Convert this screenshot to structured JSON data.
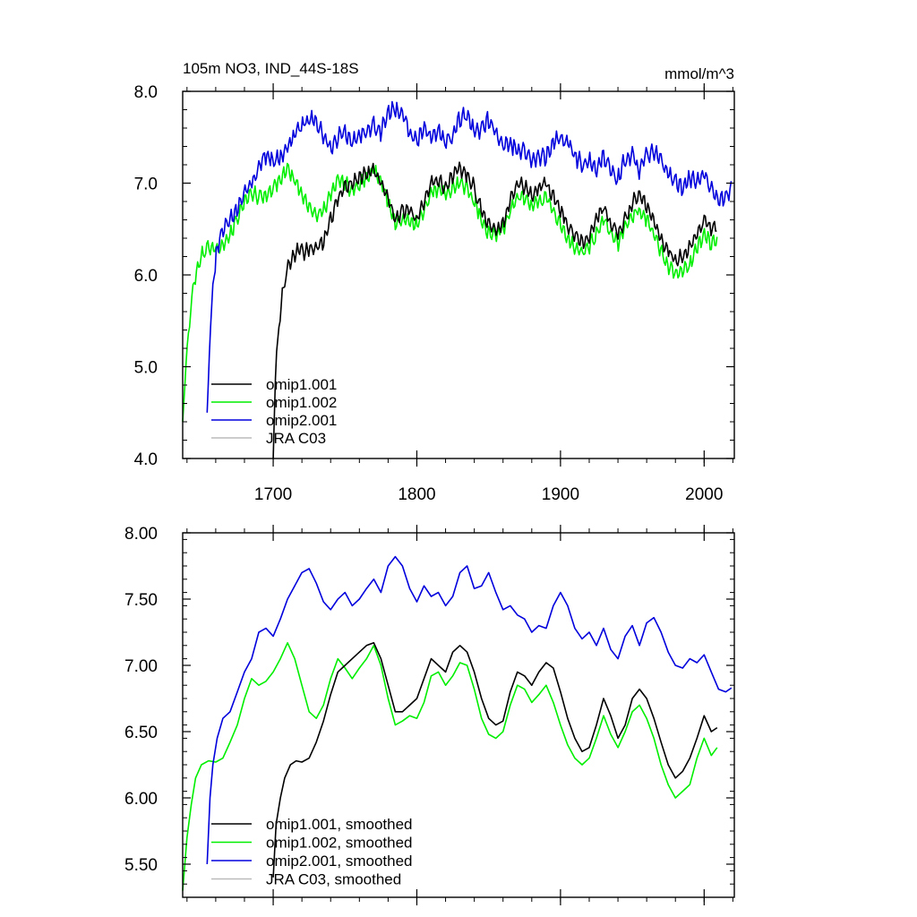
{
  "chart_data": [
    {
      "type": "line",
      "title": "105m NO3, IND_44S-18S",
      "units": "mmol/m^3",
      "xlim": [
        1637,
        2021
      ],
      "ylim": [
        4.0,
        8.0
      ],
      "xticks": [
        1700,
        1800,
        1900,
        2000
      ],
      "xtick_labels": [
        "1700",
        "1800",
        "1900",
        "2000"
      ],
      "yticks": [
        4.0,
        5.0,
        6.0,
        7.0,
        8.0
      ],
      "ytick_labels": [
        "4.0",
        "5.0",
        "6.0",
        "7.0",
        "8.0"
      ],
      "legend_position": "bottom-left",
      "series": [
        {
          "name": "omip1.001",
          "color": "#000000",
          "x0": 1700,
          "noise": 0.07,
          "x": [
            1700,
            1702,
            1705,
            1708,
            1712,
            1718,
            1722,
            1728,
            1735,
            1740,
            1745,
            1750,
            1755,
            1760,
            1765,
            1770,
            1775,
            1780,
            1785,
            1790,
            1795,
            1800,
            1805,
            1810,
            1815,
            1820,
            1825,
            1830,
            1835,
            1840,
            1845,
            1850,
            1855,
            1860,
            1865,
            1870,
            1875,
            1880,
            1885,
            1890,
            1895,
            1900,
            1905,
            1910,
            1915,
            1920,
            1925,
            1930,
            1935,
            1940,
            1945,
            1950,
            1955,
            1960,
            1965,
            1970,
            1975,
            1980,
            1985,
            1990,
            1995,
            2000,
            2005,
            2009
          ],
          "y": [
            4.0,
            5.1,
            5.6,
            5.95,
            6.15,
            6.3,
            6.25,
            6.28,
            6.35,
            6.6,
            6.85,
            6.95,
            7.0,
            7.05,
            7.1,
            7.15,
            7.0,
            6.85,
            6.6,
            6.7,
            6.7,
            6.6,
            6.8,
            7.0,
            7.05,
            6.95,
            7.1,
            7.15,
            7.1,
            6.95,
            6.7,
            6.55,
            6.5,
            6.55,
            6.8,
            7.0,
            6.95,
            6.85,
            6.95,
            7.0,
            6.85,
            6.7,
            6.55,
            6.45,
            6.35,
            6.4,
            6.6,
            6.75,
            6.55,
            6.45,
            6.6,
            6.8,
            6.85,
            6.75,
            6.6,
            6.4,
            6.25,
            6.15,
            6.2,
            6.3,
            6.45,
            6.6,
            6.5,
            6.55
          ]
        },
        {
          "name": "omip1.002",
          "color": "#00ee00",
          "x0": 1637,
          "noise": 0.07,
          "x": [
            1637,
            1640,
            1643,
            1646,
            1650,
            1655,
            1660,
            1665,
            1670,
            1675,
            1680,
            1685,
            1690,
            1695,
            1700,
            1705,
            1710,
            1715,
            1720,
            1725,
            1730,
            1735,
            1740,
            1745,
            1750,
            1755,
            1760,
            1765,
            1770,
            1775,
            1780,
            1785,
            1790,
            1795,
            1800,
            1805,
            1810,
            1815,
            1820,
            1825,
            1830,
            1835,
            1840,
            1845,
            1850,
            1855,
            1860,
            1865,
            1870,
            1875,
            1880,
            1885,
            1890,
            1895,
            1900,
            1905,
            1910,
            1915,
            1920,
            1925,
            1930,
            1935,
            1940,
            1945,
            1950,
            1955,
            1960,
            1965,
            1970,
            1975,
            1980,
            1985,
            1990,
            1995,
            2000,
            2005,
            2009
          ],
          "y": [
            4.4,
            5.2,
            5.7,
            6.0,
            6.2,
            6.3,
            6.3,
            6.3,
            6.45,
            6.6,
            6.8,
            6.9,
            6.85,
            6.85,
            6.95,
            7.05,
            7.15,
            7.05,
            6.85,
            6.75,
            6.65,
            6.7,
            6.9,
            7.05,
            7.0,
            6.9,
            7.0,
            7.05,
            7.15,
            7.0,
            6.8,
            6.55,
            6.6,
            6.6,
            6.55,
            6.7,
            6.9,
            6.95,
            6.85,
            6.95,
            7.0,
            6.95,
            6.8,
            6.6,
            6.45,
            6.45,
            6.5,
            6.7,
            6.85,
            6.85,
            6.75,
            6.8,
            6.85,
            6.7,
            6.55,
            6.4,
            6.3,
            6.25,
            6.3,
            6.45,
            6.6,
            6.45,
            6.35,
            6.5,
            6.65,
            6.7,
            6.6,
            6.45,
            6.25,
            6.1,
            6.0,
            6.05,
            6.1,
            6.3,
            6.45,
            6.35,
            6.4
          ]
        },
        {
          "name": "omip2.001",
          "color": "#0000dd",
          "x0": 1654,
          "noise": 0.08,
          "x": [
            1654,
            1656,
            1658,
            1661,
            1665,
            1670,
            1675,
            1680,
            1685,
            1690,
            1695,
            1700,
            1705,
            1710,
            1715,
            1720,
            1725,
            1730,
            1735,
            1740,
            1745,
            1750,
            1755,
            1760,
            1765,
            1770,
            1775,
            1780,
            1785,
            1790,
            1795,
            1800,
            1805,
            1810,
            1815,
            1820,
            1825,
            1830,
            1835,
            1840,
            1845,
            1850,
            1855,
            1860,
            1865,
            1870,
            1875,
            1880,
            1885,
            1890,
            1895,
            1900,
            1905,
            1910,
            1915,
            1920,
            1925,
            1930,
            1935,
            1940,
            1945,
            1950,
            1955,
            1960,
            1965,
            1970,
            1975,
            1980,
            1985,
            1990,
            1995,
            2000,
            2005,
            2010,
            2015,
            2019
          ],
          "y": [
            4.5,
            5.3,
            5.9,
            6.3,
            6.5,
            6.6,
            6.7,
            6.9,
            7.0,
            7.2,
            7.3,
            7.25,
            7.3,
            7.4,
            7.55,
            7.65,
            7.7,
            7.65,
            7.5,
            7.4,
            7.5,
            7.55,
            7.45,
            7.5,
            7.55,
            7.65,
            7.55,
            7.75,
            7.8,
            7.75,
            7.55,
            7.45,
            7.6,
            7.5,
            7.55,
            7.45,
            7.5,
            7.7,
            7.75,
            7.55,
            7.6,
            7.7,
            7.55,
            7.4,
            7.45,
            7.35,
            7.35,
            7.25,
            7.3,
            7.3,
            7.45,
            7.5,
            7.45,
            7.3,
            7.2,
            7.25,
            7.15,
            7.3,
            7.15,
            7.05,
            7.25,
            7.3,
            7.15,
            7.3,
            7.35,
            7.25,
            7.1,
            7.0,
            6.95,
            7.05,
            7.0,
            7.1,
            6.95,
            6.8,
            6.85,
            6.95
          ]
        },
        {
          "name": "JRA C03",
          "color": "#bbbbbb",
          "x": [],
          "y": []
        }
      ]
    },
    {
      "type": "line",
      "xlim": [
        1637,
        2021
      ],
      "ylim": [
        5.25,
        8.0
      ],
      "xticks": [
        1700,
        1800,
        1900,
        2000
      ],
      "yticks": [
        5.5,
        6.0,
        6.5,
        7.0,
        7.5,
        8.0
      ],
      "ytick_labels": [
        "5.50",
        "6.00",
        "6.50",
        "7.00",
        "7.50",
        "8.00"
      ],
      "legend_position": "bottom-left",
      "series": [
        {
          "name": "omip1.001, smoothed",
          "color": "#000000",
          "x0": 1700,
          "x": [
            1700,
            1702,
            1705,
            1708,
            1712,
            1716,
            1720,
            1725,
            1730,
            1735,
            1740,
            1745,
            1750,
            1755,
            1760,
            1765,
            1770,
            1775,
            1780,
            1785,
            1790,
            1795,
            1800,
            1805,
            1810,
            1815,
            1820,
            1825,
            1830,
            1835,
            1840,
            1845,
            1850,
            1855,
            1860,
            1865,
            1870,
            1875,
            1880,
            1885,
            1890,
            1895,
            1900,
            1905,
            1910,
            1915,
            1920,
            1925,
            1930,
            1935,
            1940,
            1945,
            1950,
            1955,
            1960,
            1965,
            1970,
            1975,
            1980,
            1985,
            1990,
            1995,
            2000,
            2005,
            2009
          ],
          "y": [
            5.4,
            5.8,
            6.0,
            6.15,
            6.25,
            6.28,
            6.27,
            6.3,
            6.42,
            6.58,
            6.78,
            6.95,
            7.0,
            7.05,
            7.1,
            7.15,
            7.17,
            7.05,
            6.85,
            6.65,
            6.65,
            6.7,
            6.75,
            6.9,
            7.05,
            7.0,
            6.95,
            7.1,
            7.15,
            7.1,
            6.95,
            6.75,
            6.6,
            6.55,
            6.58,
            6.8,
            6.95,
            6.92,
            6.85,
            6.95,
            7.02,
            6.98,
            6.8,
            6.6,
            6.45,
            6.35,
            6.38,
            6.55,
            6.75,
            6.62,
            6.45,
            6.55,
            6.75,
            6.82,
            6.75,
            6.6,
            6.42,
            6.25,
            6.15,
            6.2,
            6.3,
            6.45,
            6.62,
            6.5,
            6.53
          ]
        },
        {
          "name": "omip1.002, smoothed",
          "color": "#00ee00",
          "x0": 1637,
          "x": [
            1637,
            1640,
            1643,
            1646,
            1650,
            1655,
            1660,
            1665,
            1670,
            1675,
            1680,
            1685,
            1690,
            1695,
            1700,
            1705,
            1710,
            1715,
            1720,
            1725,
            1730,
            1735,
            1740,
            1745,
            1750,
            1755,
            1760,
            1765,
            1770,
            1775,
            1780,
            1785,
            1790,
            1795,
            1800,
            1805,
            1810,
            1815,
            1820,
            1825,
            1830,
            1835,
            1840,
            1845,
            1850,
            1855,
            1860,
            1865,
            1870,
            1875,
            1880,
            1885,
            1890,
            1895,
            1900,
            1905,
            1910,
            1915,
            1920,
            1925,
            1930,
            1935,
            1940,
            1945,
            1950,
            1955,
            1960,
            1965,
            1970,
            1975,
            1980,
            1985,
            1990,
            1995,
            2000,
            2005,
            2009
          ],
          "y": [
            5.3,
            5.7,
            5.95,
            6.15,
            6.25,
            6.28,
            6.27,
            6.3,
            6.42,
            6.55,
            6.75,
            6.9,
            6.85,
            6.88,
            6.95,
            7.05,
            7.17,
            7.05,
            6.85,
            6.65,
            6.6,
            6.7,
            6.9,
            7.05,
            6.98,
            6.9,
            6.98,
            7.05,
            7.15,
            7.0,
            6.75,
            6.55,
            6.58,
            6.62,
            6.6,
            6.72,
            6.92,
            6.95,
            6.85,
            6.92,
            7.02,
            7.0,
            6.82,
            6.6,
            6.48,
            6.45,
            6.5,
            6.7,
            6.85,
            6.82,
            6.72,
            6.78,
            6.85,
            6.72,
            6.55,
            6.4,
            6.3,
            6.25,
            6.3,
            6.45,
            6.62,
            6.48,
            6.38,
            6.5,
            6.65,
            6.7,
            6.6,
            6.45,
            6.25,
            6.1,
            6.0,
            6.05,
            6.1,
            6.3,
            6.45,
            6.32,
            6.38
          ]
        },
        {
          "name": "omip2.001, smoothed",
          "color": "#0000dd",
          "x0": 1654,
          "x": [
            1654,
            1656,
            1658,
            1661,
            1665,
            1670,
            1675,
            1680,
            1685,
            1690,
            1695,
            1700,
            1705,
            1710,
            1715,
            1720,
            1725,
            1730,
            1735,
            1740,
            1745,
            1750,
            1755,
            1760,
            1765,
            1770,
            1775,
            1780,
            1785,
            1790,
            1795,
            1800,
            1805,
            1810,
            1815,
            1820,
            1825,
            1830,
            1835,
            1840,
            1845,
            1850,
            1855,
            1860,
            1865,
            1870,
            1875,
            1880,
            1885,
            1890,
            1895,
            1900,
            1905,
            1910,
            1915,
            1920,
            1925,
            1930,
            1935,
            1940,
            1945,
            1950,
            1955,
            1960,
            1965,
            1970,
            1975,
            1980,
            1985,
            1990,
            1995,
            2000,
            2005,
            2010,
            2015,
            2019
          ],
          "y": [
            5.5,
            6.0,
            6.25,
            6.45,
            6.6,
            6.65,
            6.8,
            6.95,
            7.05,
            7.25,
            7.28,
            7.22,
            7.35,
            7.5,
            7.6,
            7.7,
            7.73,
            7.62,
            7.48,
            7.42,
            7.5,
            7.55,
            7.45,
            7.5,
            7.58,
            7.65,
            7.55,
            7.75,
            7.82,
            7.75,
            7.58,
            7.48,
            7.6,
            7.52,
            7.55,
            7.45,
            7.52,
            7.7,
            7.75,
            7.58,
            7.6,
            7.7,
            7.55,
            7.42,
            7.45,
            7.38,
            7.35,
            7.25,
            7.3,
            7.28,
            7.45,
            7.55,
            7.45,
            7.28,
            7.2,
            7.25,
            7.15,
            7.28,
            7.12,
            7.05,
            7.22,
            7.3,
            7.15,
            7.32,
            7.36,
            7.25,
            7.1,
            7.0,
            6.98,
            7.05,
            7.02,
            7.08,
            6.95,
            6.82,
            6.8,
            6.83
          ]
        },
        {
          "name": "JRA C03, smoothed",
          "color": "#bbbbbb",
          "x": [],
          "y": []
        }
      ]
    }
  ]
}
